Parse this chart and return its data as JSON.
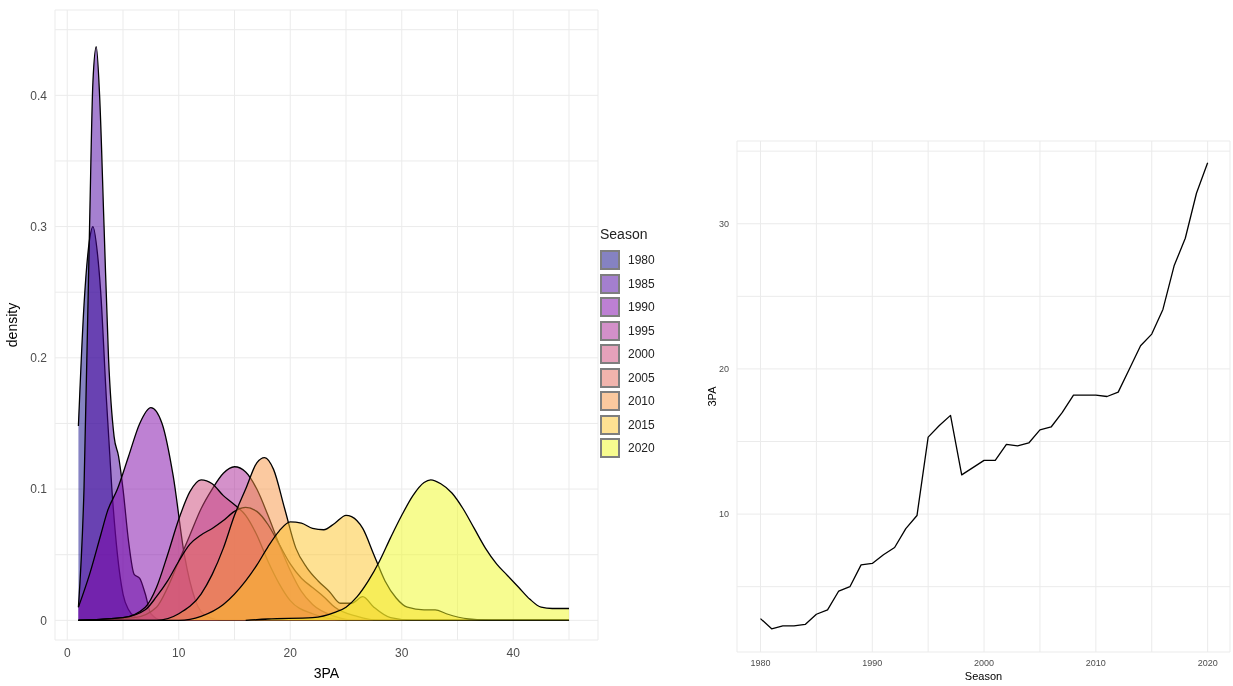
{
  "chart_data": [
    {
      "type": "area",
      "xlabel": "3PA",
      "ylabel": "density",
      "legend_title": "Season",
      "legend": "right",
      "grid": true,
      "xlim": [
        -1.1,
        47.6
      ],
      "ylim": [
        -0.015,
        0.465
      ],
      "xticks": [
        0,
        {
          "value": 5,
          "label": null
        },
        10,
        {
          "value": 15,
          "label": null
        },
        20,
        {
          "value": 25,
          "label": null
        },
        30,
        {
          "value": 35,
          "label": null
        },
        40,
        {
          "value": 45,
          "label": null
        }
      ],
      "yticks": [
        0.0,
        {
          "value": 0.05,
          "label": null
        },
        0.1,
        {
          "value": 0.15,
          "label": null
        },
        0.2,
        {
          "value": 0.25,
          "label": null
        },
        0.3,
        {
          "value": 0.35,
          "label": null
        },
        0.4,
        {
          "value": 0.45,
          "label": null
        }
      ],
      "series": [
        {
          "name": "1980",
          "color": "#0d0887",
          "x": [
            1,
            1.5,
            2,
            2.3,
            2.7,
            3,
            3.5,
            4,
            4.5,
            5,
            5.5,
            6,
            7,
            45
          ],
          "values": [
            0.148,
            0.24,
            0.29,
            0.3,
            0.28,
            0.25,
            0.17,
            0.1,
            0.05,
            0.02,
            0.008,
            0.003,
            0,
            0
          ]
        },
        {
          "name": "1985",
          "color": "#4c02a1",
          "x": [
            1,
            1.5,
            2,
            2.3,
            2.6,
            2.9,
            3.3,
            3.7,
            4.2,
            4.6,
            5,
            5.5,
            6,
            6.5,
            7,
            7.5,
            8.5,
            45
          ],
          "values": [
            0.01,
            0.1,
            0.3,
            0.41,
            0.437,
            0.4,
            0.3,
            0.2,
            0.14,
            0.125,
            0.1,
            0.06,
            0.035,
            0.032,
            0.02,
            0.005,
            0,
            0
          ]
        },
        {
          "name": "1990",
          "color": "#7e03a8",
          "x": [
            1,
            2,
            3,
            3.6,
            4.5,
            5.5,
            6.5,
            7.5,
            8.5,
            9.5,
            10.5,
            11.5,
            12.5,
            14,
            45
          ],
          "values": [
            0.01,
            0.035,
            0.065,
            0.083,
            0.1,
            0.125,
            0.15,
            0.162,
            0.15,
            0.11,
            0.05,
            0.015,
            0.003,
            0,
            0
          ]
        },
        {
          "name": "1995",
          "color": "#a92395",
          "x": [
            1,
            6,
            8,
            9,
            10,
            11,
            12,
            13,
            14,
            15,
            16,
            17,
            18,
            19,
            20,
            21,
            22,
            24,
            26,
            45
          ],
          "values": [
            0,
            0.002,
            0.01,
            0.025,
            0.045,
            0.065,
            0.085,
            0.1,
            0.112,
            0.117,
            0.113,
            0.1,
            0.08,
            0.058,
            0.038,
            0.022,
            0.012,
            0.003,
            0,
            0
          ]
        },
        {
          "name": "2000",
          "color": "#cc4678",
          "x": [
            1,
            5,
            7,
            8,
            9,
            10,
            11,
            12,
            13,
            14,
            15,
            16,
            17,
            18,
            19,
            20,
            22,
            25,
            45
          ],
          "values": [
            0,
            0.002,
            0.01,
            0.025,
            0.05,
            0.077,
            0.098,
            0.107,
            0.104,
            0.095,
            0.088,
            0.08,
            0.065,
            0.045,
            0.028,
            0.015,
            0.005,
            0,
            0
          ]
        },
        {
          "name": "2005",
          "color": "#e56b5d",
          "x": [
            1,
            5,
            7,
            8,
            9,
            10,
            11,
            12,
            13,
            14,
            15,
            16,
            17,
            18,
            19,
            20,
            21,
            22,
            23,
            24,
            26,
            28,
            45
          ],
          "values": [
            0,
            0.002,
            0.008,
            0.018,
            0.03,
            0.045,
            0.058,
            0.065,
            0.07,
            0.076,
            0.083,
            0.086,
            0.083,
            0.073,
            0.058,
            0.043,
            0.032,
            0.025,
            0.018,
            0.01,
            0.003,
            0,
            0
          ]
        },
        {
          "name": "2010",
          "color": "#f89441",
          "x": [
            1,
            8,
            10,
            12,
            13,
            14,
            15,
            16,
            17,
            17.7,
            18.5,
            19.5,
            20.5,
            21.5,
            22.5,
            23.5,
            24.5,
            25.5,
            26.5,
            27.5,
            29,
            31,
            45
          ],
          "values": [
            0,
            0,
            0.005,
            0.02,
            0.035,
            0.055,
            0.08,
            0.1,
            0.12,
            0.124,
            0.115,
            0.085,
            0.055,
            0.04,
            0.03,
            0.022,
            0.013,
            0.013,
            0.018,
            0.01,
            0.002,
            0,
            0
          ]
        },
        {
          "name": "2015",
          "color": "#fdc328",
          "x": [
            1,
            10,
            12,
            14,
            16,
            17,
            18,
            19,
            20,
            21,
            22,
            23,
            24,
            25,
            25.5,
            26.5,
            27.5,
            28.5,
            29.5,
            30.5,
            32,
            33,
            34,
            36,
            38,
            45
          ],
          "values": [
            0,
            0,
            0.003,
            0.012,
            0.03,
            0.042,
            0.056,
            0.068,
            0.075,
            0.074,
            0.07,
            0.069,
            0.074,
            0.08,
            0.079,
            0.07,
            0.05,
            0.03,
            0.017,
            0.01,
            0.008,
            0.008,
            0.005,
            0.001,
            0,
            0
          ]
        },
        {
          "name": "2020",
          "color": "#f0f921",
          "x": [
            16,
            18,
            22,
            24,
            25,
            26,
            27,
            28,
            29,
            30,
            31,
            32,
            32.6,
            33.5,
            34.5,
            35.5,
            36.5,
            37.5,
            38.5,
            39.5,
            40.5,
            41.5,
            42.5,
            43.5,
            45
          ],
          "values": [
            0,
            0.001,
            0.002,
            0.006,
            0.01,
            0.018,
            0.03,
            0.045,
            0.063,
            0.08,
            0.095,
            0.105,
            0.107,
            0.104,
            0.097,
            0.085,
            0.07,
            0.055,
            0.043,
            0.034,
            0.025,
            0.016,
            0.01,
            0.009,
            0.009
          ]
        }
      ]
    },
    {
      "type": "line",
      "xlabel": "Season",
      "ylabel": "3PA",
      "grid": true,
      "xlim": [
        1977.9,
        2022
      ],
      "ylim": [
        0.5,
        35.7
      ],
      "xticks": [
        1980,
        {
          "value": 1985,
          "label": null
        },
        1990,
        {
          "value": 1995,
          "label": null
        },
        2000,
        {
          "value": 2005,
          "label": null
        },
        2010,
        {
          "value": 2015,
          "label": null
        },
        2020
      ],
      "yticks": [
        {
          "value": 5,
          "label": null
        },
        10,
        {
          "value": 15,
          "label": null
        },
        20,
        {
          "value": 25,
          "label": null
        },
        30,
        {
          "value": 35,
          "label": null
        }
      ],
      "x": [
        1980,
        1981,
        1982,
        1983,
        1984,
        1985,
        1986,
        1987,
        1988,
        1989,
        1990,
        1991,
        1992,
        1993,
        1994,
        1995,
        1996,
        1997,
        1998,
        1999,
        2000,
        2001,
        2002,
        2003,
        2004,
        2005,
        2006,
        2007,
        2008,
        2009,
        2010,
        2011,
        2012,
        2013,
        2014,
        2015,
        2016,
        2017,
        2018,
        2019,
        2020
      ],
      "series": [
        {
          "color": "#000000",
          "values": [
            2.8,
            2.1,
            2.3,
            2.3,
            2.4,
            3.1,
            3.4,
            4.7,
            5.0,
            6.5,
            6.6,
            7.2,
            7.7,
            9.0,
            9.9,
            15.3,
            16.1,
            16.8,
            12.7,
            13.2,
            13.7,
            13.7,
            14.8,
            14.7,
            14.9,
            15.8,
            16.0,
            17.0,
            18.2,
            18.2,
            18.2,
            18.1,
            18.4,
            20.0,
            21.6,
            22.4,
            24.1,
            27.1,
            29.0,
            32.1,
            34.2
          ]
        }
      ]
    }
  ]
}
